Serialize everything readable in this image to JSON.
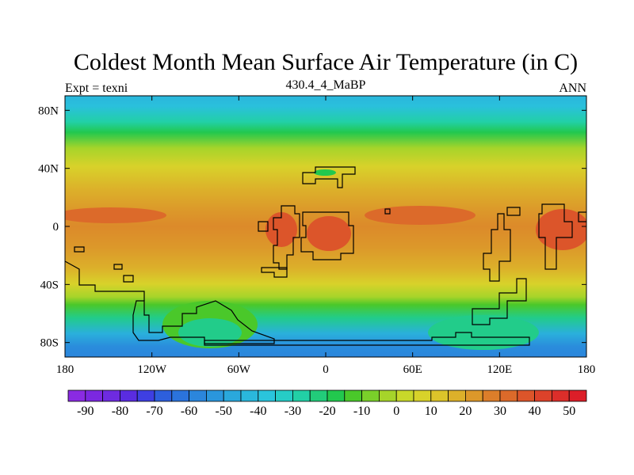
{
  "chart_data": {
    "type": "heatmap",
    "title": "Coldest Month Mean Surface Air Temperature (in C)",
    "subtitle_left": "Expt = texni",
    "subtitle_center": "430.4_4_MaBP",
    "subtitle_right": "ANN",
    "x_ticks": [
      "180",
      "120W",
      "60W",
      "0",
      "60E",
      "120E",
      "180"
    ],
    "y_ticks": [
      "80N",
      "40N",
      "0",
      "40S",
      "80S"
    ],
    "xlim": [
      -180,
      180
    ],
    "ylim": [
      -90,
      90
    ],
    "x_tick_values": [
      -180,
      -120,
      -60,
      0,
      60,
      120,
      180
    ],
    "y_tick_values": [
      80,
      40,
      0,
      -40,
      -80
    ],
    "colorbar": {
      "labels": [
        "-90",
        "-80",
        "-70",
        "-60",
        "-50",
        "-40",
        "-30",
        "-20",
        "-10",
        "0",
        "10",
        "20",
        "30",
        "40",
        "50"
      ],
      "colors": [
        "#8a2be2",
        "#7b28e0",
        "#6e2be0",
        "#5a2ce0",
        "#3e3fe2",
        "#2d5fdc",
        "#2b73dc",
        "#2b86dc",
        "#2a96dc",
        "#2aa8dc",
        "#2ab8dc",
        "#2ac4dc",
        "#26ccc6",
        "#22d0a6",
        "#22cc7a",
        "#22c84e",
        "#4ac82a",
        "#7ad02a",
        "#a6d42a",
        "#c8d82a",
        "#d8d22a",
        "#dcc42a",
        "#dcb02a",
        "#dc982a",
        "#dc7e2a",
        "#dc6a2a",
        "#dc552a",
        "#dc422a",
        "#dc2e2a",
        "#dc1e28"
      ]
    }
  }
}
